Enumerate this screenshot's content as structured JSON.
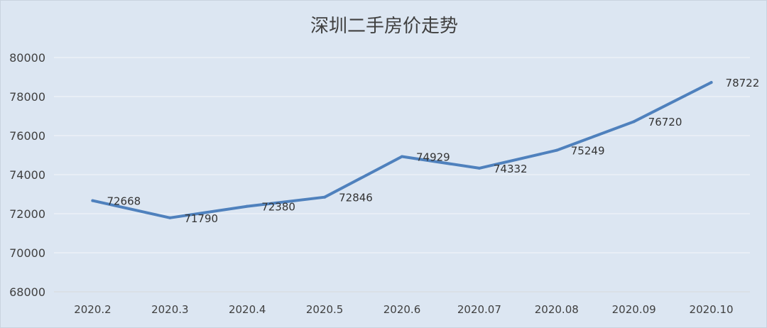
{
  "chart_data": {
    "type": "line",
    "title": "深圳二手房价走势",
    "xlabel": "",
    "ylabel": "",
    "categories": [
      "2020.2",
      "2020.3",
      "2020.4",
      "2020.5",
      "2020.6",
      "2020.07",
      "2020.08",
      "2020.09",
      "2020.10"
    ],
    "series": [
      {
        "values": [
          72668,
          71790,
          72380,
          72846,
          74929,
          74332,
          75249,
          76720,
          78722
        ]
      }
    ],
    "ylim": [
      68000,
      80000
    ],
    "yticks": [
      "68000",
      "70000",
      "72000",
      "74000",
      "76000",
      "78000",
      "80000"
    ],
    "grid": true,
    "legend": "none",
    "colors": {
      "line": "#4f81bd",
      "background": "#dce6f2",
      "grid": "#f3f6fa"
    }
  }
}
